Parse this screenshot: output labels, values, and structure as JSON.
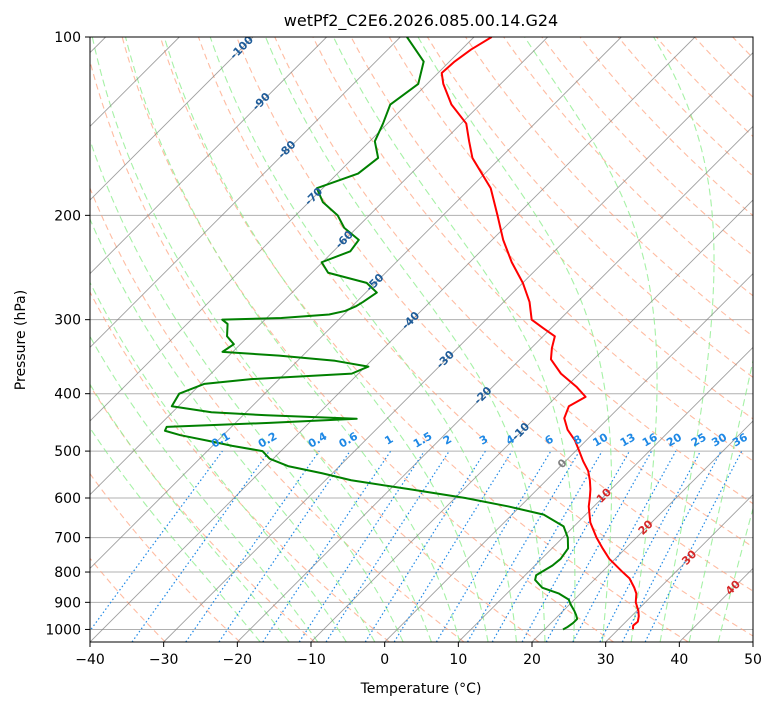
{
  "chart_data": {
    "type": "line",
    "subtype": "skew-T log-p diagram",
    "title": "wetPf2_C2E6.2026.085.00.14.G24",
    "xlabel": "Temperature (°C)",
    "ylabel": "Pressure (hPa)",
    "xlim": [
      -40,
      50
    ],
    "ylim": [
      1050,
      100
    ],
    "y_scale": "log",
    "grid": true,
    "x_ticks": [
      -40,
      -30,
      -20,
      -10,
      0,
      10,
      20,
      30,
      40,
      50
    ],
    "x_tick_labels": [
      "−40",
      "−30",
      "−20",
      "−10",
      "0",
      "10",
      "20",
      "30",
      "40",
      "50"
    ],
    "y_ticks": [
      1000,
      900,
      800,
      700,
      600,
      500,
      400,
      300,
      200,
      100
    ],
    "y_tick_labels": [
      "1000",
      "900",
      "800",
      "700",
      "600",
      "500",
      "400",
      "300",
      "200",
      "100"
    ],
    "colors": {
      "temperature": "#ff0000",
      "dewpoint": "#008000",
      "dry_adiabat": "#ffa07a",
      "moist_adiabat": "#90ee90",
      "mixing_ratio": "#1e88e5",
      "isotherm": "#808080",
      "isotherm_label_cold": "#1f5c99",
      "isotherm_label_warm": "#d62728",
      "isotherm_label_zero": "#808080",
      "grid": "#b0b0b0"
    },
    "series": [
      {
        "role": "temperature",
        "pressure": [
          1000,
          985,
          970,
          950,
          930,
          900,
          870,
          850,
          820,
          800,
          760,
          730,
          700,
          660,
          620,
          600,
          580,
          560,
          540,
          520,
          500,
          480,
          460,
          440,
          420,
          405,
          390,
          370,
          350,
          335,
          320,
          310,
          300,
          280,
          260,
          240,
          220,
          200,
          180,
          160,
          150,
          140,
          130,
          120,
          115,
          110,
          105,
          100
        ],
        "temperature": [
          32,
          31.5,
          31.6,
          31,
          30.2,
          28.7,
          27.6,
          26.5,
          24.6,
          22.8,
          19.2,
          16.9,
          14.6,
          11.7,
          9.3,
          8.3,
          7.2,
          5.9,
          4.4,
          2.4,
          0.5,
          -1.5,
          -4,
          -6,
          -7,
          -6,
          -8.5,
          -12.5,
          -15.8,
          -17.2,
          -18.4,
          -21.1,
          -23.8,
          -26.5,
          -30,
          -34.3,
          -38.5,
          -42.6,
          -47.2,
          -53.8,
          -56.5,
          -59.3,
          -63.9,
          -67.8,
          -69.5,
          -69.3,
          -68.7,
          -67.6
        ]
      },
      {
        "role": "dewpoint",
        "pressure": [
          1000,
          990,
          975,
          960,
          945,
          930,
          910,
          890,
          870,
          850,
          825,
          810,
          800,
          780,
          760,
          730,
          700,
          670,
          640,
          620,
          600,
          580,
          560,
          545,
          530,
          515,
          500,
          490,
          480,
          470,
          462,
          455,
          448,
          441,
          435,
          430,
          420,
          400,
          385,
          378,
          370,
          360,
          352,
          345,
          340,
          330,
          320,
          305,
          300,
          298,
          294,
          290,
          285,
          280,
          270,
          260,
          250,
          240,
          230,
          220,
          210,
          200,
          190,
          180,
          170,
          160,
          150,
          140,
          130,
          120,
          110,
          100
        ],
        "dewpoint": [
          22.5,
          22.8,
          23,
          23,
          22.3,
          21.5,
          20.3,
          19.2,
          17.1,
          14,
          12,
          11.5,
          11.8,
          12.4,
          12.6,
          12.2,
          10.7,
          8.6,
          4.3,
          -1.6,
          -8.6,
          -17.3,
          -26.5,
          -31.4,
          -37,
          -40.5,
          -42.5,
          -47.3,
          -51.4,
          -55.8,
          -58.5,
          -58.8,
          -45.4,
          -34.1,
          -46.8,
          -54.7,
          -60.9,
          -61.6,
          -59.5,
          -53.8,
          -40.9,
          -39.6,
          -44.9,
          -53.2,
          -61.4,
          -60.9,
          -62.9,
          -64.5,
          -65.8,
          -58,
          -52,
          -50.3,
          -49.5,
          -49.1,
          -48.5,
          -51.2,
          -57.8,
          -60.1,
          -57.7,
          -58.1,
          -61.7,
          -64.3,
          -68.1,
          -70.8,
          -67.2,
          -66.6,
          -69.3,
          -70.6,
          -72.2,
          -71.2,
          -73.5,
          -79.1
        ]
      }
    ],
    "isotherm_labels": [
      {
        "text": "-100",
        "value": -100
      },
      {
        "text": "-90",
        "value": -90
      },
      {
        "text": "-80",
        "value": -80
      },
      {
        "text": "-70",
        "value": -70
      },
      {
        "text": "-60",
        "value": -60
      },
      {
        "text": "-50",
        "value": -50
      },
      {
        "text": "-40",
        "value": -40
      },
      {
        "text": "-30",
        "value": -30
      },
      {
        "text": "-20",
        "value": -20
      },
      {
        "text": "-10",
        "value": -10
      },
      {
        "text": "0",
        "value": 0
      },
      {
        "text": "10",
        "value": 10
      },
      {
        "text": "20",
        "value": 20
      },
      {
        "text": "30",
        "value": 30
      },
      {
        "text": "40",
        "value": 40
      }
    ],
    "mixing_ratio_labels": [
      "0.1",
      "0.2",
      "0.4",
      "0.6",
      "1",
      "1.5",
      "2",
      "3",
      "4",
      "6",
      "8",
      "10",
      "13",
      "16",
      "20",
      "25",
      "30",
      "36"
    ],
    "mixing_ratio_values_gkg": [
      0.1,
      0.2,
      0.4,
      0.6,
      1,
      1.5,
      2,
      3,
      4,
      6,
      8,
      10,
      13,
      16,
      20,
      25,
      30,
      36
    ]
  }
}
